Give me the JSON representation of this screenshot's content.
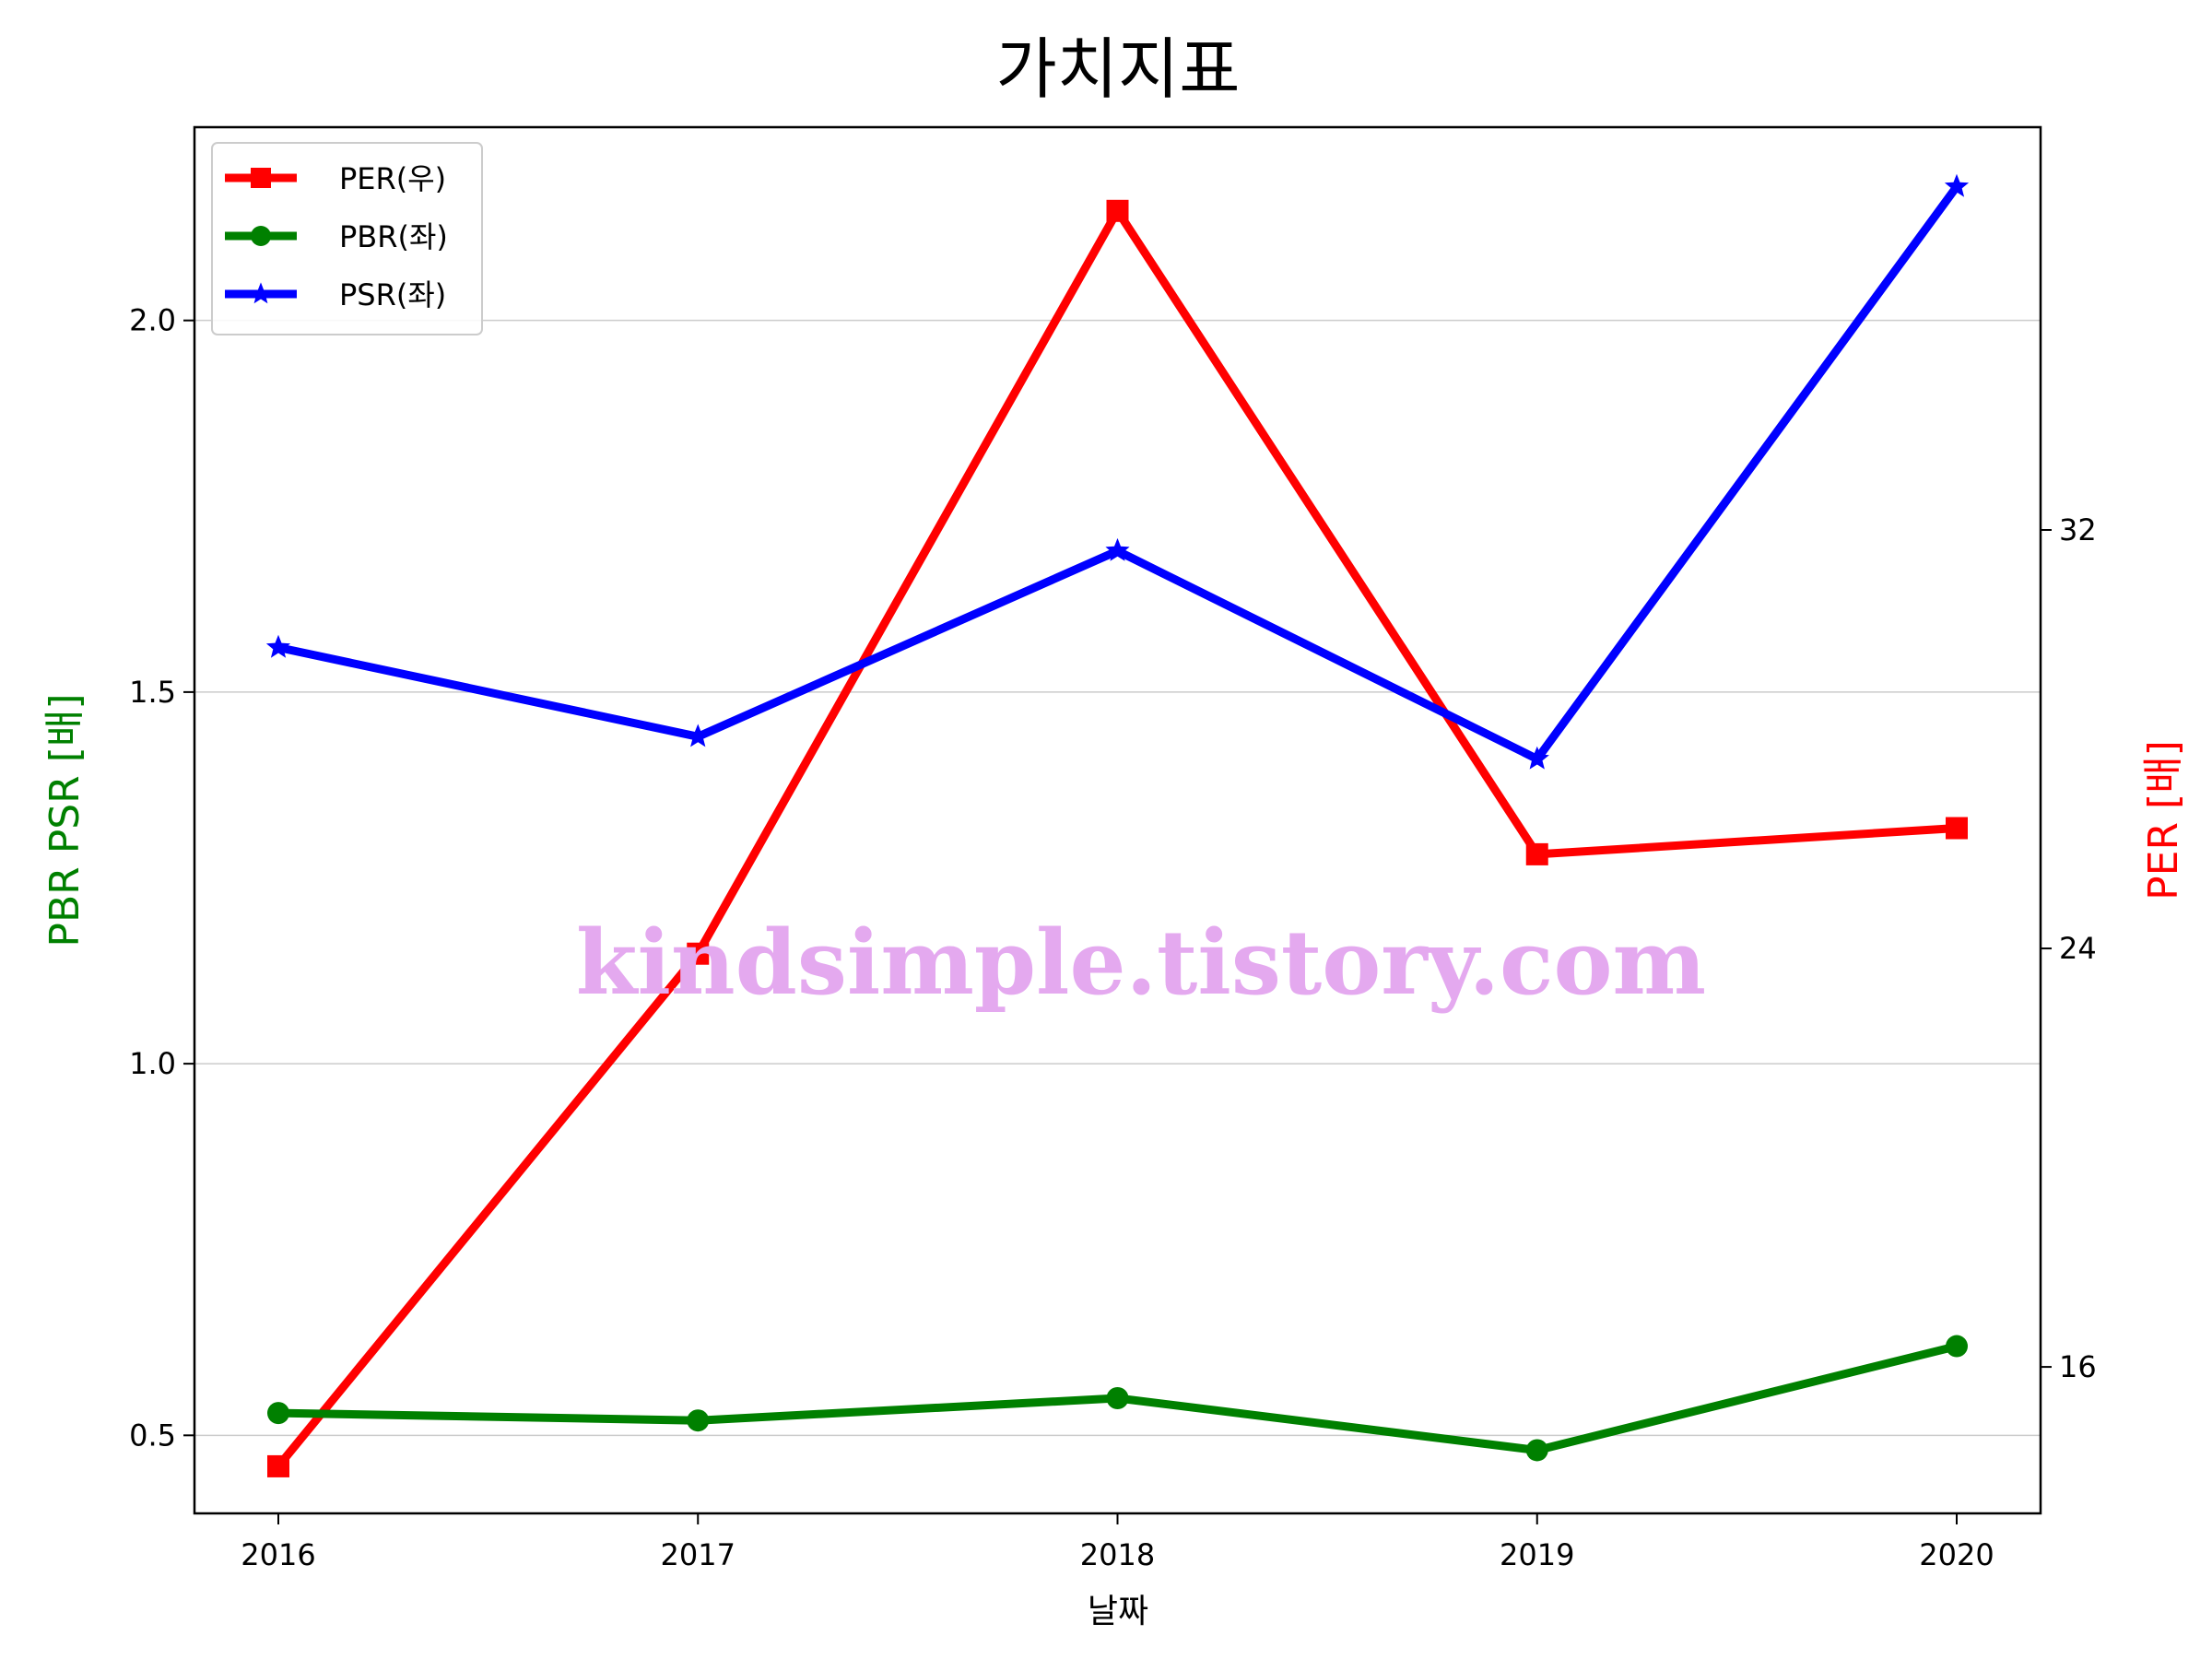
{
  "chart_data": {
    "type": "line",
    "title": "가치지표",
    "xlabel": "날짜",
    "ylabel_left": "PBR PSR [배]",
    "ylabel_right": "PER [배]",
    "categories": [
      "2016",
      "2017",
      "2018",
      "2019",
      "2020"
    ],
    "ylim_left": [
      0.395,
      2.26
    ],
    "ylim_right": [
      13.2,
      39.7
    ],
    "yticks_left": [
      "0.5",
      "1.0",
      "1.5",
      "2.0"
    ],
    "yticks_left_values": [
      0.5,
      1.0,
      1.5,
      2.0
    ],
    "yticks_right": [
      "16",
      "24",
      "32"
    ],
    "yticks_right_values": [
      16,
      24,
      32
    ],
    "grid": "horizontal",
    "legend_position": "upper-left",
    "series": [
      {
        "name": "PER(우)",
        "axis": "right",
        "color": "#ff0000",
        "marker": "square",
        "values": [
          14.1,
          23.9,
          38.1,
          25.8,
          26.3
        ]
      },
      {
        "name": "PBR(좌)",
        "axis": "left",
        "color": "#008000",
        "marker": "circle",
        "values": [
          0.53,
          0.52,
          0.55,
          0.48,
          0.62
        ]
      },
      {
        "name": "PSR(좌)",
        "axis": "left",
        "color": "#0000ff",
        "marker": "star",
        "values": [
          1.56,
          1.44,
          1.69,
          1.41,
          2.18
        ]
      }
    ],
    "left_label_color": "#008000",
    "right_label_color": "#ff0000"
  },
  "watermark": {
    "text": "kindsimple.tistory.com",
    "color": "#e4a9ef"
  }
}
